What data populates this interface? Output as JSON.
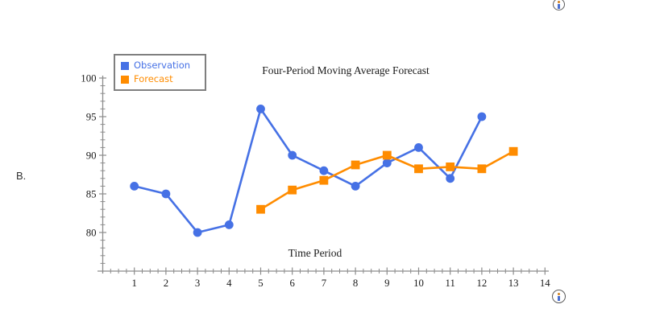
{
  "page": {
    "part_label": "B.",
    "icons": {
      "top": "info-icon",
      "bottom": "info-icon"
    }
  },
  "chart_data": {
    "type": "line",
    "title": "Four-Period Moving Average Forecast",
    "xlabel": "Time Period",
    "ylabel": "",
    "xlim": [
      0,
      14
    ],
    "ylim": [
      75,
      100
    ],
    "x_major_ticks": [
      1,
      2,
      3,
      4,
      5,
      6,
      7,
      8,
      9,
      10,
      11,
      12,
      13,
      14
    ],
    "y_major_ticks": [
      80,
      85,
      90,
      95,
      100
    ],
    "x_minor_step": 0.25,
    "y_minor_step": 1,
    "grid": false,
    "legend_position": "top-left",
    "axis_color": "#8c8c8c",
    "series": [
      {
        "name": "Observation",
        "marker": "circle",
        "color": "#4671E5",
        "x": [
          1,
          2,
          3,
          4,
          5,
          6,
          7,
          8,
          9,
          10,
          11,
          12
        ],
        "values": [
          86,
          85,
          80,
          81,
          96,
          90,
          88,
          86,
          89,
          91,
          87,
          95
        ]
      },
      {
        "name": "Forecast",
        "marker": "square",
        "color": "#FF8C00",
        "x": [
          5,
          6,
          7,
          8,
          9,
          10,
          11,
          12,
          13
        ],
        "values": [
          83,
          85.5,
          86.75,
          88.75,
          90,
          88.25,
          88.5,
          88.25,
          90.5
        ]
      }
    ]
  }
}
